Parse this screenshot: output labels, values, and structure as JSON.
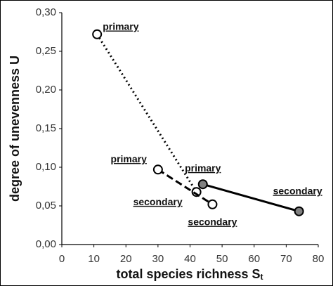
{
  "chart_data": {
    "type": "line",
    "x_label": "total  species  richness  S",
    "x_label_subscript": "t",
    "y_label": "degree  of  unevenness  U",
    "xlim": [
      0,
      80
    ],
    "xticks": [
      0,
      10,
      20,
      30,
      40,
      50,
      60,
      70,
      80
    ],
    "ylim": [
      0,
      0.3
    ],
    "yticks": [
      {
        "value": 0,
        "label": "0,00"
      },
      {
        "value": 0.05,
        "label": "0,05"
      },
      {
        "value": 0.1,
        "label": "0,10"
      },
      {
        "value": 0.15,
        "label": "0,15"
      },
      {
        "value": 0.2,
        "label": "0,20"
      },
      {
        "value": 0.25,
        "label": "0,25"
      },
      {
        "value": 0.3,
        "label": "0,30"
      }
    ],
    "grid": false,
    "series": [
      {
        "x": [
          11,
          42
        ],
        "values": [
          0.272,
          0.068
        ],
        "labels": [
          "primary",
          "secondary"
        ],
        "line_style": "dotted",
        "marker_fill": "#ffffff",
        "color": "#000000"
      },
      {
        "x": [
          30,
          47
        ],
        "values": [
          0.097,
          0.052
        ],
        "labels": [
          "primary",
          "secondary"
        ],
        "line_style": "dashed",
        "marker_fill": "#ffffff",
        "color": "#000000"
      },
      {
        "x": [
          44,
          74
        ],
        "values": [
          0.078,
          0.043
        ],
        "labels": [
          "primary",
          "secondary"
        ],
        "line_style": "solid",
        "marker_fill": "#808080",
        "color": "#000000"
      }
    ]
  }
}
